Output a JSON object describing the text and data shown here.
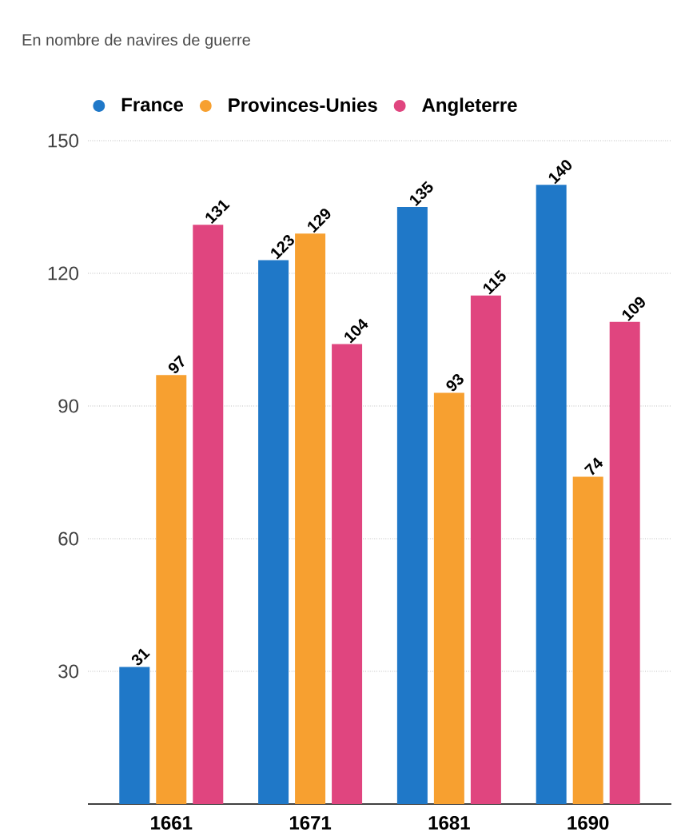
{
  "chart_data": {
    "type": "bar",
    "subtitle": "En nombre de navires de guerre",
    "categories": [
      "1661",
      "1671",
      "1681",
      "1690"
    ],
    "series": [
      {
        "name": "France",
        "color": "#1f78c8",
        "values": [
          31,
          123,
          135,
          140
        ]
      },
      {
        "name": "Provinces-Unies",
        "color": "#f7a030",
        "values": [
          97,
          129,
          93,
          74
        ]
      },
      {
        "name": "Angleterre",
        "color": "#e0457f",
        "values": [
          131,
          104,
          115,
          109
        ]
      }
    ],
    "ylim": [
      0,
      150
    ],
    "yticks": [
      30,
      60,
      90,
      120,
      150
    ],
    "grid": "y",
    "legend": "top left",
    "data_labels": true
  }
}
